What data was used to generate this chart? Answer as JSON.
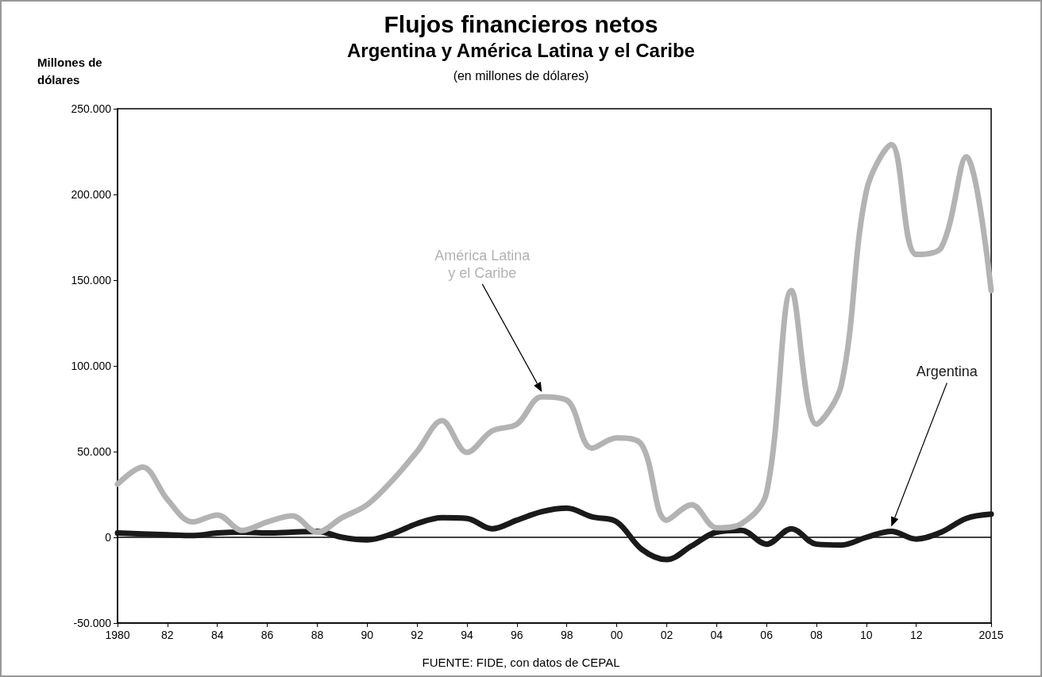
{
  "chart_data": {
    "type": "line",
    "title": "Flujos financieros netos",
    "subtitle": "Argentina y América Latina y el Caribe",
    "ylabel": "Millones de dólares",
    "annotations": [
      "(en millones de dólares)",
      "FUENTE: FIDE, con datos de CEPAL"
    ],
    "x": [
      1980,
      1981,
      1982,
      1983,
      1984,
      1985,
      1986,
      1987,
      1988,
      1989,
      1990,
      1991,
      1992,
      1993,
      1994,
      1995,
      1996,
      1997,
      1998,
      1999,
      2000,
      2001,
      2002,
      2003,
      2004,
      2005,
      2006,
      2007,
      2008,
      2009,
      2010,
      2011,
      2012,
      2013,
      2014,
      2015
    ],
    "series": [
      {
        "name": "América Latina y el Caribe",
        "color": "#b3b3b3",
        "values": [
          31000,
          41000,
          22000,
          9000,
          13000,
          4000,
          9000,
          12500,
          3000,
          11500,
          19000,
          33000,
          50000,
          68000,
          49500,
          62000,
          66000,
          82000,
          80000,
          52000,
          58000,
          54000,
          10000,
          19000,
          5500,
          8000,
          26000,
          144000,
          66000,
          89000,
          202000,
          229000,
          165000,
          169000,
          222000,
          144000
        ]
      },
      {
        "name": "Argentina",
        "color": "#1a1a1a",
        "values": [
          2500,
          2000,
          1500,
          1000,
          2500,
          3000,
          2500,
          3000,
          3500,
          0,
          -1500,
          2000,
          8000,
          11500,
          11000,
          5000,
          10000,
          15000,
          17000,
          12000,
          9000,
          -7000,
          -13000,
          -5000,
          3000,
          4000,
          -4000,
          5000,
          -4000,
          -4500,
          0,
          3500,
          -1000,
          3000,
          11000,
          13500
        ]
      }
    ],
    "xlim": [
      1980,
      2015
    ],
    "xticks": [
      1980,
      {
        "value": 1982,
        "label": "82"
      },
      {
        "value": 1984,
        "label": "84"
      },
      {
        "value": 1986,
        "label": "86"
      },
      {
        "value": 1988,
        "label": "88"
      },
      {
        "value": 1990,
        "label": "90"
      },
      {
        "value": 1992,
        "label": "92"
      },
      {
        "value": 1994,
        "label": "94"
      },
      {
        "value": 1996,
        "label": "96"
      },
      {
        "value": 1998,
        "label": "98"
      },
      {
        "value": 2000,
        "label": "00"
      },
      {
        "value": 2002,
        "label": "02"
      },
      {
        "value": 2004,
        "label": "04"
      },
      {
        "value": 2006,
        "label": "06"
      },
      {
        "value": 2008,
        "label": "08"
      },
      {
        "value": 2010,
        "label": "10"
      },
      {
        "value": 2012,
        "label": "12"
      },
      2015
    ],
    "ylim": [
      -50000,
      250000
    ],
    "yticks": [
      {
        "value": -50000,
        "label": "-50.000"
      },
      0,
      {
        "value": 50000,
        "label": "50.000"
      },
      {
        "value": 100000,
        "label": "100.000"
      },
      {
        "value": 150000,
        "label": "150.000"
      },
      {
        "value": 200000,
        "label": "200.000"
      },
      {
        "value": 250000,
        "label": "250.000"
      }
    ],
    "ref_lines": [
      {
        "axis": "y",
        "value": 0,
        "color": "#000000"
      }
    ],
    "grid": false,
    "legend": false,
    "marker": "none",
    "line_style": "solid"
  }
}
